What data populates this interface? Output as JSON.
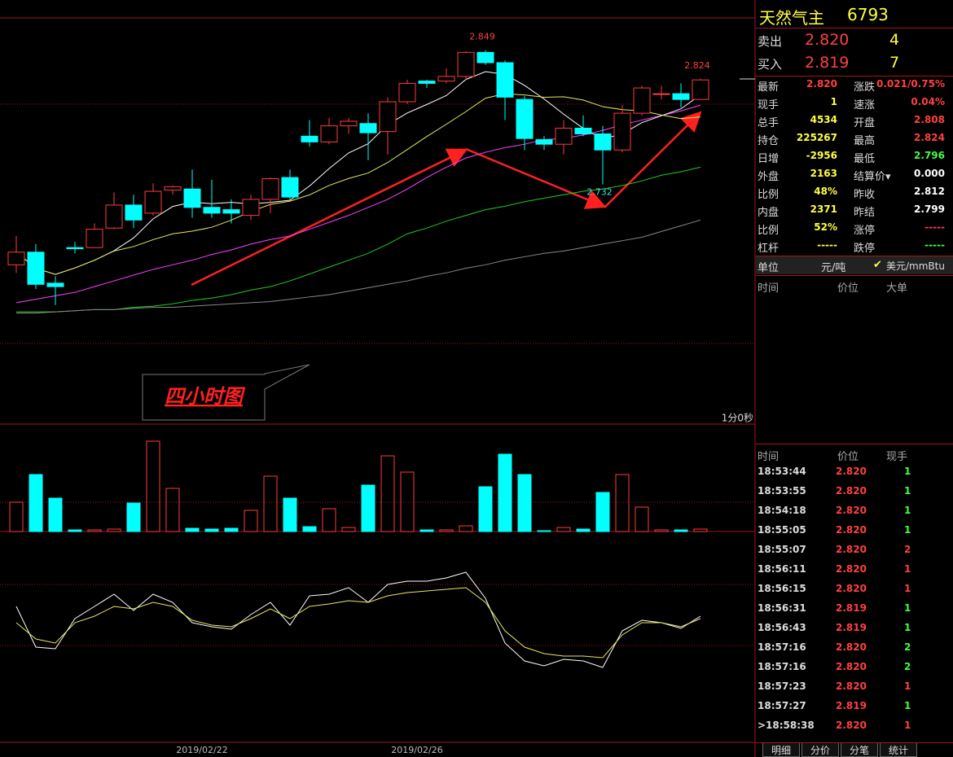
{
  "chart_data": {
    "type": "candlestick",
    "open": [
      2.662,
      2.673,
      2.646,
      2.677,
      2.677,
      2.694,
      2.714,
      2.707,
      2.727,
      2.728,
      2.712,
      2.71,
      2.705,
      2.719,
      2.738,
      2.774,
      2.769,
      2.783,
      2.785,
      2.778,
      2.804,
      2.822,
      2.822,
      2.826,
      2.847,
      2.838,
      2.806,
      2.771,
      2.767,
      2.781,
      2.776,
      2.762,
      2.794,
      2.811,
      2.811,
      2.806
    ],
    "high": [
      2.687,
      2.68,
      2.652,
      2.682,
      2.698,
      2.725,
      2.723,
      2.733,
      2.731,
      2.745,
      2.736,
      2.719,
      2.723,
      2.738,
      2.745,
      2.788,
      2.79,
      2.79,
      2.794,
      2.808,
      2.823,
      2.823,
      2.833,
      2.848,
      2.849,
      2.84,
      2.809,
      2.774,
      2.788,
      2.792,
      2.783,
      2.801,
      2.818,
      2.818,
      2.82,
      2.824
    ],
    "low": [
      2.655,
      2.641,
      2.627,
      2.672,
      2.677,
      2.693,
      2.694,
      2.705,
      2.723,
      2.703,
      2.703,
      2.698,
      2.701,
      2.707,
      2.719,
      2.765,
      2.767,
      2.776,
      2.753,
      2.758,
      2.802,
      2.816,
      2.82,
      2.823,
      2.836,
      2.788,
      2.762,
      2.762,
      2.758,
      2.774,
      2.732,
      2.76,
      2.792,
      2.806,
      2.799,
      2.806
    ],
    "close": [
      2.673,
      2.645,
      2.643,
      2.676,
      2.693,
      2.714,
      2.701,
      2.726,
      2.73,
      2.712,
      2.707,
      2.707,
      2.719,
      2.737,
      2.721,
      2.769,
      2.783,
      2.787,
      2.777,
      2.804,
      2.82,
      2.82,
      2.826,
      2.847,
      2.838,
      2.808,
      2.772,
      2.767,
      2.781,
      2.776,
      2.762,
      2.794,
      2.816,
      2.811,
      2.806,
      2.823
    ],
    "categories": [
      null,
      null,
      null,
      null,
      null,
      null,
      null,
      null,
      null,
      null,
      "2019/02/22",
      null,
      null,
      null,
      null,
      null,
      null,
      null,
      null,
      null,
      null,
      "2019/02/26",
      null,
      null,
      null,
      null,
      null,
      null,
      null,
      null,
      null,
      null,
      null,
      null,
      null,
      null
    ],
    "ylim": [
      2.524,
      2.877
    ],
    "up_color": "#ff3c3c",
    "down_color": "#00ffff",
    "ma_lines": [
      {
        "color": "#ff40ff",
        "values": [
          2.629,
          2.632,
          2.635,
          2.638,
          2.643,
          2.648,
          2.653,
          2.658,
          2.662,
          2.666,
          2.671,
          2.675,
          2.68,
          2.684,
          2.687,
          2.693,
          2.699,
          2.705,
          2.712,
          2.719,
          2.728,
          2.738,
          2.747,
          2.755,
          2.76,
          2.764,
          2.767,
          2.771,
          2.772,
          2.775,
          2.779,
          2.784,
          2.788,
          2.792,
          2.796,
          2.801
        ]
      },
      {
        "color": "#22cc22",
        "values": [
          2.621,
          2.621,
          2.621,
          2.622,
          2.623,
          2.623,
          2.625,
          2.626,
          2.628,
          2.631,
          2.633,
          2.636,
          2.64,
          2.643,
          2.648,
          2.654,
          2.66,
          2.666,
          2.672,
          2.68,
          2.689,
          2.694,
          2.7,
          2.705,
          2.71,
          2.713,
          2.717,
          2.72,
          2.723,
          2.726,
          2.728,
          2.731,
          2.735,
          2.74,
          2.743,
          2.747
        ]
      },
      {
        "color": "#888888",
        "values": [
          2.62,
          2.62,
          2.621,
          2.622,
          2.623,
          2.623,
          2.624,
          2.625,
          2.625,
          2.626,
          2.627,
          2.628,
          2.629,
          2.63,
          2.632,
          2.634,
          2.636,
          2.639,
          2.642,
          2.645,
          2.648,
          2.652,
          2.655,
          2.659,
          2.662,
          2.666,
          2.669,
          2.672,
          2.674,
          2.677,
          2.68,
          2.683,
          2.686,
          2.691,
          2.696,
          2.701
        ]
      }
    ],
    "annotations": [
      {
        "value": 2.849
      },
      {
        "value": 2.824
      },
      {
        "value": 2.732
      }
    ],
    "volume": {
      "values": [
        36,
        70,
        41,
        2,
        2,
        3,
        35,
        111,
        53,
        4,
        3,
        4,
        26,
        68,
        41,
        6,
        28,
        5,
        57,
        93,
        73,
        2,
        2,
        7,
        55,
        95,
        70,
        1,
        5,
        3,
        48,
        70,
        30,
        2,
        2,
        3
      ],
      "ylim": [
        0,
        115
      ]
    },
    "oscillator": {
      "ylim": [
        0,
        250
      ],
      "series": [
        {
          "color": "#ffffff",
          "values": [
            160,
            110,
            108,
            145,
            160,
            175,
            155,
            175,
            165,
            140,
            135,
            132,
            150,
            165,
            137,
            173,
            175,
            183,
            165,
            187,
            191,
            191,
            195,
            202,
            170,
            115,
            93,
            87,
            95,
            93,
            85,
            130,
            143,
            140,
            133,
            148
          ]
        },
        {
          "color": "#e8e860",
          "values": [
            140,
            120,
            115,
            140,
            148,
            160,
            157,
            165,
            160,
            143,
            137,
            135,
            145,
            157,
            145,
            160,
            163,
            167,
            165,
            173,
            177,
            179,
            181,
            183,
            165,
            130,
            110,
            102,
            99,
            99,
            97,
            125,
            140,
            140,
            135,
            145
          ]
        }
      ]
    },
    "label_box": "四小时图",
    "timer": "1分0秒"
  },
  "side": {
    "name": "天然气主",
    "code": "6793",
    "orders": [
      {
        "label": "卖出",
        "price": "2.820",
        "qty": "4"
      },
      {
        "label": "买入",
        "price": "2.819",
        "qty": "7"
      }
    ],
    "quotes": [
      [
        {
          "label": "最新",
          "value": "2.820",
          "color": "#ff4040"
        },
        {
          "label": "涨跌",
          "value": "0.021/0.75%",
          "color": "#ff4040"
        }
      ],
      [
        {
          "label": "现手",
          "value": "1",
          "color": "#ffff40"
        },
        {
          "label": "速涨",
          "value": "0.04%",
          "color": "#ff4040"
        }
      ],
      [
        {
          "label": "总手",
          "value": "4534",
          "color": "#ffff40"
        },
        {
          "label": "开盘",
          "value": "2.808",
          "color": "#ff4040"
        }
      ],
      [
        {
          "label": "持仓",
          "value": "225267",
          "color": "#ffff40"
        },
        {
          "label": "最高",
          "value": "2.824",
          "color": "#ff4040"
        }
      ],
      [
        {
          "label": "日增",
          "value": "-2956",
          "color": "#ffff40"
        },
        {
          "label": "最低",
          "value": "2.796",
          "color": "#40ff40"
        }
      ],
      [
        {
          "label": "外盘",
          "value": "2163",
          "color": "#ffff40"
        },
        {
          "label": "结算价▾",
          "value": "0.000",
          "color": "#ffffff"
        }
      ],
      [
        {
          "label": "比例",
          "value": "48%",
          "color": "#ffff40"
        },
        {
          "label": "昨收",
          "value": "2.812",
          "color": "#ffffff"
        }
      ],
      [
        {
          "label": "内盘",
          "value": "2371",
          "color": "#ffff40"
        },
        {
          "label": "昨结",
          "value": "2.799",
          "color": "#ffffff"
        }
      ],
      [
        {
          "label": "比例",
          "value": "52%",
          "color": "#ffff40"
        },
        {
          "label": "涨停",
          "value": "-----",
          "color": "#ff4040"
        }
      ],
      [
        {
          "label": "杠杆",
          "value": "-----",
          "color": "#ffff40"
        },
        {
          "label": "跌停",
          "value": "-----",
          "color": "#40ff40"
        }
      ]
    ],
    "unit": {
      "label": "单位",
      "a": "元/吨",
      "b": "美元/mmBtu"
    },
    "big_header": [
      "时间",
      "价位",
      "大单"
    ],
    "tick_header": [
      "时间",
      "价位",
      "现手"
    ],
    "ticks": [
      {
        "time": "18:53:44",
        "price": "2.820",
        "vol": "1",
        "color": "#40ff40"
      },
      {
        "time": "18:53:55",
        "price": "2.820",
        "vol": "1",
        "color": "#40ff40"
      },
      {
        "time": "18:54:18",
        "price": "2.820",
        "vol": "1",
        "color": "#40ff40"
      },
      {
        "time": "18:55:05",
        "price": "2.820",
        "vol": "1",
        "color": "#40ff40"
      },
      {
        "time": "18:55:07",
        "price": "2.820",
        "vol": "2",
        "color": "#ff4040"
      },
      {
        "time": "18:56:11",
        "price": "2.820",
        "vol": "1",
        "color": "#ff4040"
      },
      {
        "time": "18:56:15",
        "price": "2.820",
        "vol": "1",
        "color": "#ff4040"
      },
      {
        "time": "18:56:31",
        "price": "2.819",
        "vol": "1",
        "color": "#40ff40"
      },
      {
        "time": "18:56:43",
        "price": "2.819",
        "vol": "1",
        "color": "#40ff40"
      },
      {
        "time": "18:57:16",
        "price": "2.820",
        "vol": "2",
        "color": "#40ff40"
      },
      {
        "time": "18:57:16",
        "price": "2.820",
        "vol": "2",
        "color": "#40ff40"
      },
      {
        "time": "18:57:23",
        "price": "2.820",
        "vol": "1",
        "color": "#ff4040"
      },
      {
        "time": "18:57:27",
        "price": "2.819",
        "vol": "1",
        "color": "#40ff40"
      },
      {
        "time": ">18:58:38",
        "price": "2.820",
        "vol": "1",
        "color": "#ff4040"
      }
    ],
    "tabs": [
      "明细",
      "分价",
      "分笔",
      "统计"
    ]
  }
}
